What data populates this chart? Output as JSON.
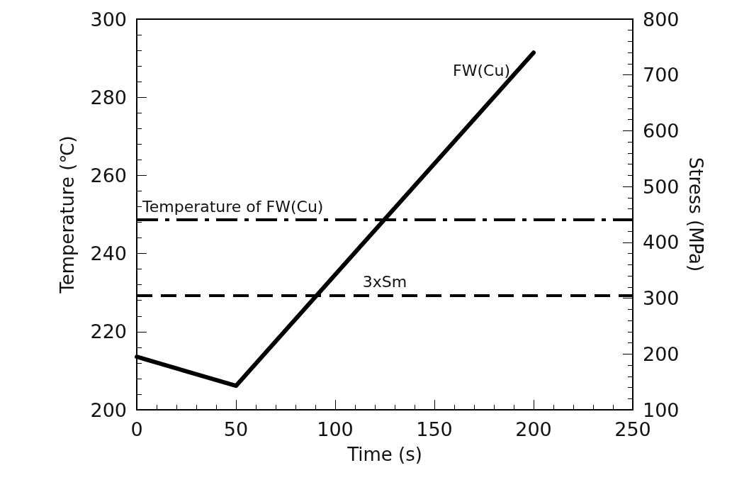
{
  "chart_data": {
    "type": "line",
    "xlabel": "Time (s)",
    "ylabel": "Temperature (℃)",
    "y2label": "Stress (MPa)",
    "xlim": [
      0,
      250
    ],
    "xticks": [
      0,
      50,
      100,
      150,
      200,
      250
    ],
    "ylim": [
      200,
      300
    ],
    "yticks": [
      200,
      220,
      240,
      260,
      280,
      300
    ],
    "y2lim": [
      100,
      800
    ],
    "y2ticks": [
      100,
      200,
      300,
      400,
      500,
      600,
      700,
      800
    ],
    "series": [
      {
        "name": "FW(Cu)",
        "color": "#000000",
        "axis": "y2",
        "x": [
          0,
          50,
          200
        ],
        "values": [
          195,
          143,
          740
        ]
      }
    ],
    "ref_lines": [
      {
        "axis": "y",
        "value": 248.6,
        "label": "Temperature of FW(Cu)",
        "color": "#000000",
        "line_style": "dashdot"
      },
      {
        "axis": "y2",
        "value": 305,
        "label": "3xSm",
        "color": "#000000",
        "line_style": "dashed"
      }
    ],
    "marker": "none",
    "grid": false,
    "legend": false
  }
}
